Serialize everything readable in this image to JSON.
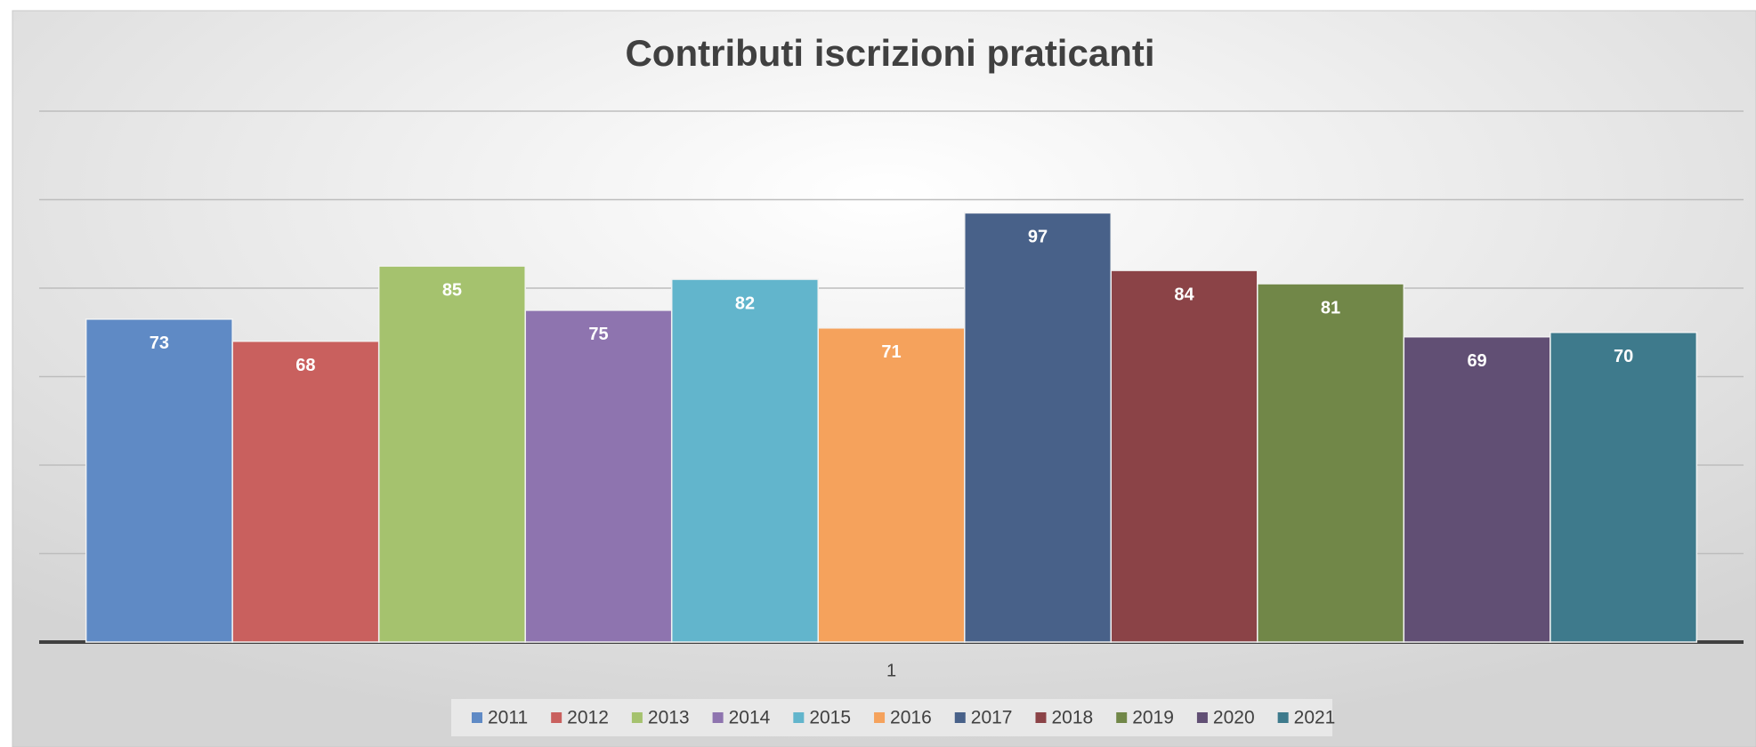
{
  "chart_data": {
    "type": "bar",
    "title": "Contributi iscrizioni praticanti",
    "categories": [
      "1"
    ],
    "series": [
      {
        "name": "2011",
        "color": "#5f8ac5",
        "values": [
          73
        ]
      },
      {
        "name": "2012",
        "color": "#c9605e",
        "values": [
          68
        ]
      },
      {
        "name": "2013",
        "color": "#a5c26e",
        "values": [
          85
        ]
      },
      {
        "name": "2014",
        "color": "#8e74af",
        "values": [
          75
        ]
      },
      {
        "name": "2015",
        "color": "#62b5cc",
        "values": [
          82
        ]
      },
      {
        "name": "2016",
        "color": "#f5a25c",
        "values": [
          71
        ]
      },
      {
        "name": "2017",
        "color": "#486189",
        "values": [
          97
        ]
      },
      {
        "name": "2018",
        "color": "#8b4347",
        "values": [
          84
        ]
      },
      {
        "name": "2019",
        "color": "#718748",
        "values": [
          81
        ]
      },
      {
        "name": "2020",
        "color": "#614f74",
        "values": [
          69
        ]
      },
      {
        "name": "2021",
        "color": "#3e7a8c",
        "values": [
          70
        ]
      }
    ],
    "ylim": [
      0,
      120
    ],
    "yticks": [
      0,
      20,
      40,
      60,
      80,
      100,
      120
    ],
    "grid": true,
    "legend": "bottom"
  }
}
